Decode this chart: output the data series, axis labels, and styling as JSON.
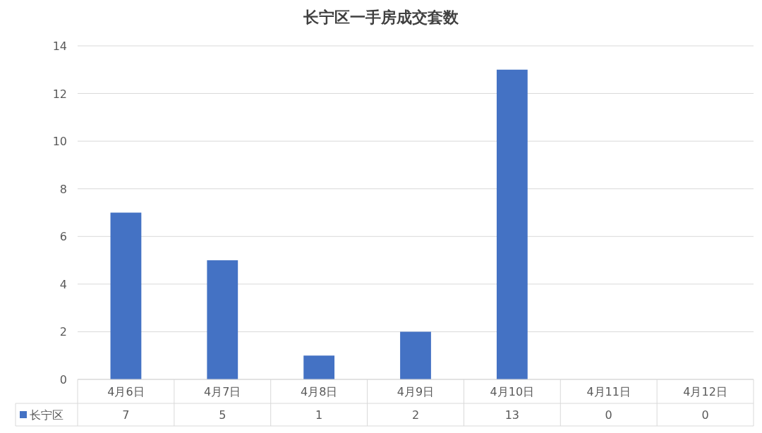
{
  "chart_data": {
    "type": "bar",
    "title": "长宁区一手房成交套数",
    "categories": [
      "4月6日",
      "4月7日",
      "4月8日",
      "4月9日",
      "4月10日",
      "4月11日",
      "4月12日"
    ],
    "series": [
      {
        "name": "长宁区",
        "color": "#4472c4",
        "values": [
          7,
          5,
          1,
          2,
          13,
          0,
          0
        ]
      }
    ],
    "ylim": [
      0,
      14
    ],
    "yticks": [
      0,
      2,
      4,
      6,
      8,
      10,
      12,
      14
    ],
    "grid": "y",
    "data_labels": true,
    "legend": "bottom"
  }
}
